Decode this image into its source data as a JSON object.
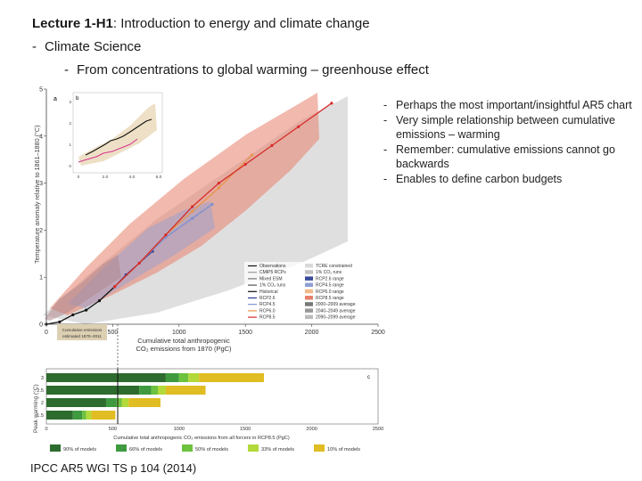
{
  "slide": {
    "title_bold": "Lecture 1-H1",
    "title_rest": ": Introduction to energy and climate change",
    "bullet1": "Climate Science",
    "bullet2": "From concentrations to global warming – greenhouse effect",
    "source": "IPCC AR5 WGI TS p 104 (2014)"
  },
  "notes": [
    "Perhaps the most important/insightful AR5 chart",
    "Very simple relationship between cumulative emissions – warming",
    "Remember: cumulative emissions cannot go backwards",
    "Enables to define carbon budgets"
  ],
  "figure": {
    "panel_a": {
      "label": "a",
      "ylabel": "Temperature anomaly relative to 1861–1880 (°C)",
      "yticks": [
        "0",
        "1",
        "2",
        "3",
        "4",
        "5"
      ],
      "xticks": [
        "0",
        "500",
        "1000",
        "1500",
        "2000",
        "2500"
      ],
      "xlabel_line1": "Cumulative total anthropogenic",
      "xlabel_line2": "CO₂ emissions from 1870 (PgC)",
      "inset_label": "b",
      "inset_xticks": [
        "0",
        "2.0",
        "4.0",
        "6.0"
      ],
      "inset_yticks": [
        "0",
        "1",
        "2",
        "3"
      ],
      "note_line1": "Cumulative emissions",
      "note_line2": "estimated 1870–2011",
      "legend_left": [
        "Observations",
        "CMIP5 RCPs",
        "Mixed ESM",
        "1% CO₂ runs",
        "Historical",
        "RCP2.6",
        "RCP4.5",
        "RCP6.0",
        "RCP8.5"
      ],
      "legend_right": [
        "TCRE constrained",
        "1% CO₂ runs",
        "RCP2.6 range",
        "RCP4.5 range",
        "RCP6.0 range",
        "RCP8.5 range",
        "2000–2009 average",
        "2040–2049 average",
        "2090–2099 average"
      ],
      "colors": {
        "rcp26": "#2b3a8f",
        "rcp45": "#7d8fd1",
        "rcp60": "#e7944b",
        "rcp85": "#d62c2a",
        "historical": "#111111",
        "gray_band": "#d2d2d2",
        "red_band": "#e8806b"
      },
      "chart_data": {
        "type": "line",
        "xlabel": "Cumulative total anthropogenic CO₂ emissions from 1870 (PgC)",
        "ylabel": "Temperature anomaly relative to 1861–1880 (°C)",
        "xlim": [
          0,
          2500
        ],
        "ylim": [
          0,
          5
        ],
        "series": [
          {
            "name": "Historical",
            "x": [
              0,
              100,
              200,
              300,
              400,
              515
            ],
            "y": [
              0.0,
              0.05,
              0.2,
              0.3,
              0.5,
              0.8
            ]
          },
          {
            "name": "RCP2.6",
            "x": [
              515,
              600,
              700,
              800
            ],
            "y": [
              0.8,
              1.05,
              1.3,
              1.55
            ]
          },
          {
            "name": "RCP4.5",
            "x": [
              515,
              700,
              900,
              1100,
              1250
            ],
            "y": [
              0.8,
              1.3,
              1.85,
              2.25,
              2.55
            ]
          },
          {
            "name": "RCP6.0",
            "x": [
              515,
              700,
              900,
              1100,
              1300,
              1550
            ],
            "y": [
              0.8,
              1.3,
              1.9,
              2.4,
              2.9,
              3.6
            ]
          },
          {
            "name": "RCP8.5",
            "x": [
              515,
              700,
              900,
              1100,
              1300,
              1500,
              1700,
              1900,
              2150
            ],
            "y": [
              0.8,
              1.3,
              1.9,
              2.5,
              3.0,
              3.4,
              3.8,
              4.2,
              4.7
            ]
          }
        ]
      }
    },
    "panel_c": {
      "label": "c",
      "ylabel": "Peak warming (°C)",
      "yticks": [
        "3",
        "2.5",
        "2",
        "1.5"
      ],
      "xticks": [
        "0",
        "500",
        "1000",
        "1500",
        "2000",
        "2500"
      ],
      "xlabel": "Cumulative total anthropogenic CO₂ emissions from all forcers in RCP8.5 (PgC)",
      "legend": [
        "90% of models",
        "66% of models",
        "50% of models",
        "33% of models",
        "10% of models"
      ],
      "colors": [
        "#2e6b2e",
        "#3f9a3f",
        "#6dc23f",
        "#b3d93a",
        "#e0bd22"
      ],
      "chart_data": {
        "type": "bar",
        "categories": [
          "3",
          "2.5",
          "2",
          "1.5"
        ],
        "series": [
          {
            "name": "90% of models",
            "values": [
              900,
              700,
              450,
              200
            ]
          },
          {
            "name": "66% of models",
            "values": [
              1000,
              790,
              530,
              270
            ]
          },
          {
            "name": "50% of models",
            "values": [
              1070,
              840,
              570,
              300
            ]
          },
          {
            "name": "33% of models",
            "values": [
              1150,
              900,
              620,
              340
            ]
          },
          {
            "name": "10% of models",
            "values": [
              1640,
              1200,
              860,
              520
            ]
          }
        ],
        "xlim": [
          0,
          2500
        ]
      }
    }
  }
}
